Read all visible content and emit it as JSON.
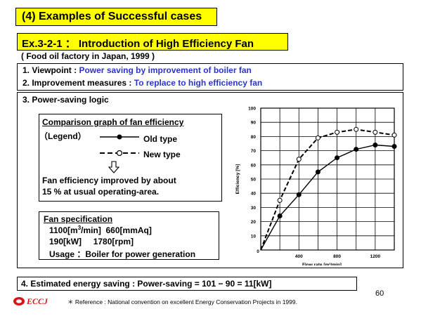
{
  "header": {
    "section_title": "(4) Examples of Successful cases",
    "example_title": "Ex.3-2-1 ： Introduction of High Efficiency Fan",
    "context": "( Food oil factory in Japan, 1999 )"
  },
  "viewpoints": {
    "viewpoint_label": "1. Viewpoint :",
    "viewpoint_text": "Power saving by improvement of boiler fan",
    "measures_label": "2. Improvement measures :",
    "measures_text": "To replace to high efficiency fan"
  },
  "logic": {
    "title": "3. Power-saving logic",
    "comparison": {
      "title": "Comparison graph of fan efficiency",
      "legend_label": "（Legend）",
      "old_type": "Old type",
      "new_type": "New type",
      "arrow_icon": "down-arrow-icon",
      "result_line1": "Fan efficiency improved by about",
      "result_line2": "15 % at usual operating-area."
    },
    "spec": {
      "title": "Fan specification",
      "flow_value": "1100[m",
      "flow_exp": "3",
      "flow_unit_rest": "/min]",
      "pressure": "660[mmAq]",
      "power": "190[kW]",
      "speed": "1780[rpm]",
      "usage": "Usage ：Boiler for power generation"
    }
  },
  "saving": {
    "text": "4. Estimated energy saving : Power-saving = 101 − 90 = 11[kW]"
  },
  "footer": {
    "logo_text": "ECCJ",
    "reference": "＊ Reference : National convention on excellent Energy Conservation Projects in 1999.",
    "page_number": "60"
  },
  "chart_data": {
    "type": "line",
    "xlabel": "Flow rate [m³/min]",
    "ylabel": "Efficiency [%]",
    "xlim": [
      0,
      1400
    ],
    "ylim": [
      0,
      100
    ],
    "x_ticks": [
      "400",
      "800",
      "1200"
    ],
    "y_ticks": [
      "10",
      "20",
      "30",
      "40",
      "50",
      "60",
      "70",
      "80",
      "90",
      "100"
    ],
    "zero_label": "0",
    "grid": true,
    "series": [
      {
        "name": "Old type",
        "style": "solid",
        "marker": "filled",
        "x": [
          200,
          400,
          600,
          800,
          1000,
          1200,
          1400
        ],
        "y": [
          24,
          39,
          55,
          65,
          71,
          74,
          73
        ]
      },
      {
        "name": "New type",
        "style": "dashed",
        "marker": "open",
        "x": [
          200,
          400,
          600,
          800,
          1000,
          1200,
          1400
        ],
        "y": [
          35,
          64,
          79,
          83,
          85,
          83,
          81
        ]
      }
    ],
    "colors": {
      "line": "#000000",
      "grid": "#000000"
    }
  }
}
